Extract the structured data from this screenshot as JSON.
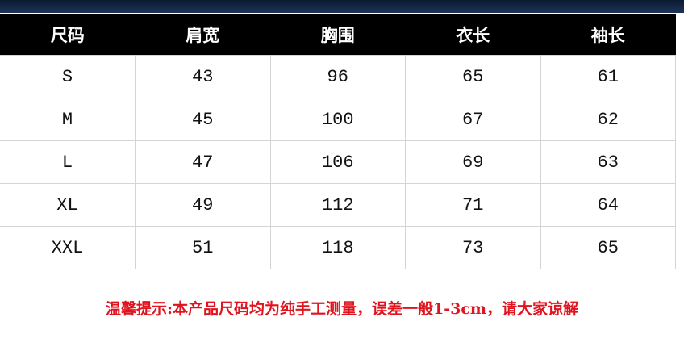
{
  "table": {
    "header": [
      "尺码",
      "肩宽",
      "胸围",
      "衣长",
      "袖长"
    ],
    "rows": [
      [
        "S",
        43,
        96,
        65,
        61
      ],
      [
        "M",
        45,
        100,
        67,
        62
      ],
      [
        "L",
        47,
        106,
        69,
        63
      ],
      [
        "XL",
        49,
        112,
        71,
        64
      ],
      [
        "XXL",
        51,
        118,
        73,
        65
      ]
    ]
  },
  "note": "温馨提示:本产品尺码均为纯手工测量，误差一般1-3cm，请大家谅解"
}
